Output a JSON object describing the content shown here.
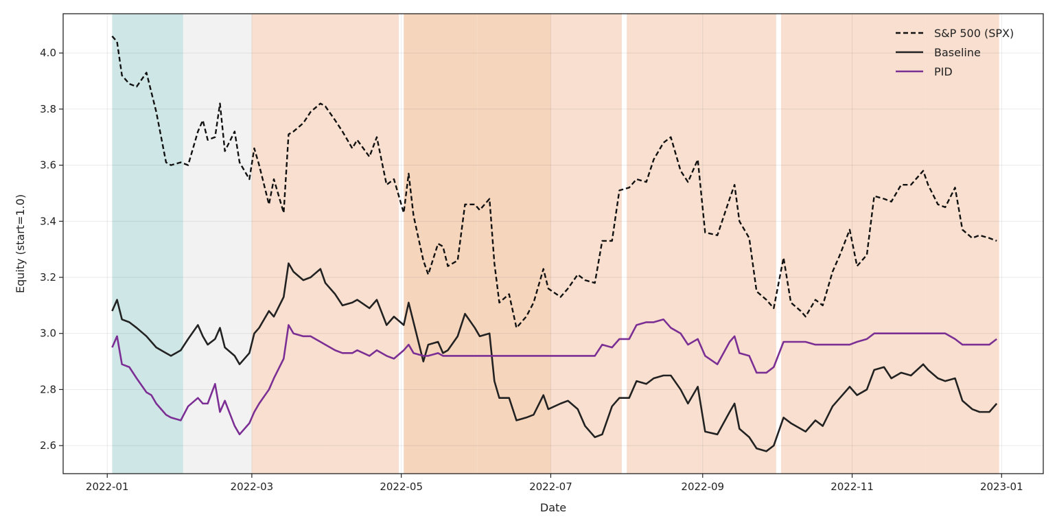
{
  "chart_data": {
    "type": "line",
    "title": "",
    "xlabel": "Date",
    "ylabel": "Equity (start=1.0)",
    "xlim": [
      "2021-12-14",
      "2023-01-18"
    ],
    "ylim": [
      2.5,
      4.14
    ],
    "x_ticks": [
      "2022-01-01",
      "2022-03-01",
      "2022-05-01",
      "2022-07-01",
      "2022-09-01",
      "2022-11-01",
      "2023-01-01"
    ],
    "x_tick_labels": [
      "2022-01",
      "2022-03",
      "2022-05",
      "2022-07",
      "2022-09",
      "2022-11",
      "2023-01"
    ],
    "y_ticks": [
      2.6,
      2.8,
      3.0,
      3.2,
      3.4,
      3.6,
      3.8,
      4.0
    ],
    "y_tick_labels": [
      "2.6",
      "2.8",
      "3.0",
      "3.2",
      "3.4",
      "3.6",
      "3.8",
      "4.0"
    ],
    "grid": true,
    "legend_position": "top-right",
    "regime_bands": [
      {
        "start": "2022-01-03",
        "end": "2022-01-31",
        "color": "#cfe6e6"
      },
      {
        "start": "2022-02-01",
        "end": "2022-02-28",
        "color": "#f2f2f2"
      },
      {
        "start": "2022-03-01",
        "end": "2022-03-31",
        "color": "#f8dfcf"
      },
      {
        "start": "2022-04-01",
        "end": "2022-04-29",
        "color": "#f8dfcf"
      },
      {
        "start": "2022-05-02",
        "end": "2022-05-31",
        "color": "#f6d5bd"
      },
      {
        "start": "2022-06-01",
        "end": "2022-06-30",
        "color": "#f6d5bd"
      },
      {
        "start": "2022-07-01",
        "end": "2022-07-29",
        "color": "#f8dfcf"
      },
      {
        "start": "2022-08-01",
        "end": "2022-08-31",
        "color": "#f8dfcf"
      },
      {
        "start": "2022-09-01",
        "end": "2022-09-30",
        "color": "#f8dfcf"
      },
      {
        "start": "2022-10-03",
        "end": "2022-10-31",
        "color": "#f8dfcf"
      },
      {
        "start": "2022-11-01",
        "end": "2022-11-30",
        "color": "#f8dfcf"
      },
      {
        "start": "2022-12-01",
        "end": "2022-12-30",
        "color": "#f8dfcf"
      }
    ],
    "series": [
      {
        "name": "S&P 500 (SPX)",
        "color": "#111111",
        "style": "dashed",
        "x": [
          "2022-01-03",
          "2022-01-05",
          "2022-01-07",
          "2022-01-10",
          "2022-01-13",
          "2022-01-17",
          "2022-01-19",
          "2022-01-21",
          "2022-01-25",
          "2022-01-27",
          "2022-01-31",
          "2022-02-03",
          "2022-02-07",
          "2022-02-09",
          "2022-02-11",
          "2022-02-14",
          "2022-02-16",
          "2022-02-18",
          "2022-02-22",
          "2022-02-24",
          "2022-02-28",
          "2022-03-02",
          "2022-03-04",
          "2022-03-08",
          "2022-03-10",
          "2022-03-14",
          "2022-03-16",
          "2022-03-18",
          "2022-03-22",
          "2022-03-25",
          "2022-03-29",
          "2022-03-31",
          "2022-04-04",
          "2022-04-07",
          "2022-04-11",
          "2022-04-13",
          "2022-04-18",
          "2022-04-21",
          "2022-04-25",
          "2022-04-28",
          "2022-05-02",
          "2022-05-04",
          "2022-05-06",
          "2022-05-10",
          "2022-05-12",
          "2022-05-16",
          "2022-05-18",
          "2022-05-20",
          "2022-05-24",
          "2022-05-27",
          "2022-05-31",
          "2022-06-02",
          "2022-06-06",
          "2022-06-08",
          "2022-06-10",
          "2022-06-14",
          "2022-06-17",
          "2022-06-21",
          "2022-06-24",
          "2022-06-28",
          "2022-06-30",
          "2022-07-05",
          "2022-07-08",
          "2022-07-12",
          "2022-07-15",
          "2022-07-19",
          "2022-07-22",
          "2022-07-26",
          "2022-07-29",
          "2022-08-02",
          "2022-08-05",
          "2022-08-09",
          "2022-08-12",
          "2022-08-16",
          "2022-08-19",
          "2022-08-23",
          "2022-08-26",
          "2022-08-30",
          "2022-09-02",
          "2022-09-07",
          "2022-09-12",
          "2022-09-14",
          "2022-09-16",
          "2022-09-20",
          "2022-09-23",
          "2022-09-27",
          "2022-09-30",
          "2022-10-04",
          "2022-10-07",
          "2022-10-11",
          "2022-10-13",
          "2022-10-17",
          "2022-10-20",
          "2022-10-24",
          "2022-10-27",
          "2022-10-31",
          "2022-11-03",
          "2022-11-07",
          "2022-11-10",
          "2022-11-14",
          "2022-11-17",
          "2022-11-21",
          "2022-11-25",
          "2022-11-30",
          "2022-12-02",
          "2022-12-06",
          "2022-12-09",
          "2022-12-13",
          "2022-12-16",
          "2022-12-20",
          "2022-12-23",
          "2022-12-27",
          "2022-12-30"
        ],
        "values": [
          4.06,
          4.04,
          3.92,
          3.89,
          3.88,
          3.93,
          3.86,
          3.79,
          3.61,
          3.6,
          3.61,
          3.6,
          3.72,
          3.76,
          3.69,
          3.7,
          3.82,
          3.65,
          3.72,
          3.61,
          3.55,
          3.66,
          3.6,
          3.46,
          3.55,
          3.43,
          3.71,
          3.72,
          3.75,
          3.79,
          3.82,
          3.81,
          3.76,
          3.72,
          3.66,
          3.69,
          3.63,
          3.7,
          3.53,
          3.55,
          3.43,
          3.57,
          3.42,
          3.26,
          3.21,
          3.32,
          3.31,
          3.24,
          3.26,
          3.46,
          3.46,
          3.44,
          3.48,
          3.25,
          3.11,
          3.14,
          3.02,
          3.06,
          3.11,
          3.23,
          3.16,
          3.13,
          3.16,
          3.21,
          3.19,
          3.18,
          3.33,
          3.33,
          3.51,
          3.52,
          3.55,
          3.54,
          3.62,
          3.68,
          3.7,
          3.58,
          3.54,
          3.62,
          3.36,
          3.35,
          3.48,
          3.53,
          3.4,
          3.34,
          3.15,
          3.12,
          3.09,
          3.27,
          3.11,
          3.08,
          3.06,
          3.12,
          3.1,
          3.22,
          3.28,
          3.37,
          3.24,
          3.28,
          3.49,
          3.48,
          3.47,
          3.53,
          3.53,
          3.58,
          3.53,
          3.46,
          3.45,
          3.52,
          3.37,
          3.34,
          3.35,
          3.34,
          3.33
        ]
      },
      {
        "name": "Baseline",
        "color": "#222222",
        "style": "solid",
        "x": [
          "2022-01-03",
          "2022-01-05",
          "2022-01-07",
          "2022-01-10",
          "2022-01-13",
          "2022-01-17",
          "2022-01-19",
          "2022-01-21",
          "2022-01-25",
          "2022-01-27",
          "2022-01-31",
          "2022-02-03",
          "2022-02-07",
          "2022-02-09",
          "2022-02-11",
          "2022-02-14",
          "2022-02-16",
          "2022-02-18",
          "2022-02-22",
          "2022-02-24",
          "2022-02-28",
          "2022-03-02",
          "2022-03-04",
          "2022-03-08",
          "2022-03-10",
          "2022-03-14",
          "2022-03-16",
          "2022-03-18",
          "2022-03-22",
          "2022-03-25",
          "2022-03-29",
          "2022-03-31",
          "2022-04-04",
          "2022-04-07",
          "2022-04-11",
          "2022-04-13",
          "2022-04-18",
          "2022-04-21",
          "2022-04-25",
          "2022-04-28",
          "2022-05-02",
          "2022-05-04",
          "2022-05-06",
          "2022-05-10",
          "2022-05-12",
          "2022-05-16",
          "2022-05-18",
          "2022-05-20",
          "2022-05-24",
          "2022-05-27",
          "2022-05-31",
          "2022-06-02",
          "2022-06-06",
          "2022-06-08",
          "2022-06-10",
          "2022-06-14",
          "2022-06-17",
          "2022-06-21",
          "2022-06-24",
          "2022-06-28",
          "2022-06-30",
          "2022-07-05",
          "2022-07-08",
          "2022-07-12",
          "2022-07-15",
          "2022-07-19",
          "2022-07-22",
          "2022-07-26",
          "2022-07-29",
          "2022-08-02",
          "2022-08-05",
          "2022-08-09",
          "2022-08-12",
          "2022-08-16",
          "2022-08-19",
          "2022-08-23",
          "2022-08-26",
          "2022-08-30",
          "2022-09-02",
          "2022-09-07",
          "2022-09-12",
          "2022-09-14",
          "2022-09-16",
          "2022-09-20",
          "2022-09-23",
          "2022-09-27",
          "2022-09-30",
          "2022-10-04",
          "2022-10-07",
          "2022-10-11",
          "2022-10-13",
          "2022-10-17",
          "2022-10-20",
          "2022-10-24",
          "2022-10-27",
          "2022-10-31",
          "2022-11-03",
          "2022-11-07",
          "2022-11-10",
          "2022-11-14",
          "2022-11-17",
          "2022-11-21",
          "2022-11-25",
          "2022-11-30",
          "2022-12-02",
          "2022-12-06",
          "2022-12-09",
          "2022-12-13",
          "2022-12-16",
          "2022-12-20",
          "2022-12-23",
          "2022-12-27",
          "2022-12-30"
        ],
        "values": [
          3.08,
          3.12,
          3.05,
          3.04,
          3.02,
          2.99,
          2.97,
          2.95,
          2.93,
          2.92,
          2.94,
          2.98,
          3.03,
          2.99,
          2.96,
          2.98,
          3.02,
          2.95,
          2.92,
          2.89,
          2.93,
          3.0,
          3.02,
          3.08,
          3.06,
          3.13,
          3.25,
          3.22,
          3.19,
          3.2,
          3.23,
          3.18,
          3.14,
          3.1,
          3.11,
          3.12,
          3.09,
          3.12,
          3.03,
          3.06,
          3.03,
          3.11,
          3.04,
          2.9,
          2.96,
          2.97,
          2.93,
          2.94,
          2.99,
          3.07,
          3.02,
          2.99,
          3.0,
          2.83,
          2.77,
          2.77,
          2.69,
          2.7,
          2.71,
          2.78,
          2.73,
          2.75,
          2.76,
          2.73,
          2.67,
          2.63,
          2.64,
          2.74,
          2.77,
          2.77,
          2.83,
          2.82,
          2.84,
          2.85,
          2.85,
          2.8,
          2.75,
          2.81,
          2.65,
          2.64,
          2.72,
          2.75,
          2.66,
          2.63,
          2.59,
          2.58,
          2.6,
          2.7,
          2.68,
          2.66,
          2.65,
          2.69,
          2.67,
          2.74,
          2.77,
          2.81,
          2.78,
          2.8,
          2.87,
          2.88,
          2.84,
          2.86,
          2.85,
          2.89,
          2.87,
          2.84,
          2.83,
          2.84,
          2.76,
          2.73,
          2.72,
          2.72,
          2.75
        ]
      },
      {
        "name": "PID",
        "color": "#7b2f94",
        "style": "solid",
        "x": [
          "2022-01-03",
          "2022-01-05",
          "2022-01-07",
          "2022-01-10",
          "2022-01-13",
          "2022-01-17",
          "2022-01-19",
          "2022-01-21",
          "2022-01-25",
          "2022-01-27",
          "2022-01-31",
          "2022-02-03",
          "2022-02-07",
          "2022-02-09",
          "2022-02-11",
          "2022-02-14",
          "2022-02-16",
          "2022-02-18",
          "2022-02-22",
          "2022-02-24",
          "2022-02-28",
          "2022-03-02",
          "2022-03-04",
          "2022-03-08",
          "2022-03-10",
          "2022-03-14",
          "2022-03-16",
          "2022-03-18",
          "2022-03-22",
          "2022-03-25",
          "2022-03-29",
          "2022-03-31",
          "2022-04-04",
          "2022-04-07",
          "2022-04-11",
          "2022-04-13",
          "2022-04-18",
          "2022-04-21",
          "2022-04-25",
          "2022-04-28",
          "2022-05-02",
          "2022-05-04",
          "2022-05-06",
          "2022-05-10",
          "2022-05-12",
          "2022-05-16",
          "2022-05-18",
          "2022-05-20",
          "2022-05-24",
          "2022-05-27",
          "2022-05-31",
          "2022-06-02",
          "2022-06-06",
          "2022-06-08",
          "2022-06-10",
          "2022-06-14",
          "2022-06-17",
          "2022-06-21",
          "2022-06-24",
          "2022-06-28",
          "2022-06-30",
          "2022-07-05",
          "2022-07-08",
          "2022-07-12",
          "2022-07-15",
          "2022-07-19",
          "2022-07-22",
          "2022-07-26",
          "2022-07-29",
          "2022-08-02",
          "2022-08-05",
          "2022-08-09",
          "2022-08-12",
          "2022-08-16",
          "2022-08-19",
          "2022-08-23",
          "2022-08-26",
          "2022-08-30",
          "2022-09-02",
          "2022-09-07",
          "2022-09-12",
          "2022-09-14",
          "2022-09-16",
          "2022-09-20",
          "2022-09-23",
          "2022-09-27",
          "2022-09-30",
          "2022-10-04",
          "2022-10-07",
          "2022-10-11",
          "2022-10-13",
          "2022-10-17",
          "2022-10-20",
          "2022-10-24",
          "2022-10-27",
          "2022-10-31",
          "2022-11-03",
          "2022-11-07",
          "2022-11-10",
          "2022-11-14",
          "2022-11-17",
          "2022-11-21",
          "2022-11-25",
          "2022-11-30",
          "2022-12-02",
          "2022-12-06",
          "2022-12-09",
          "2022-12-13",
          "2022-12-16",
          "2022-12-20",
          "2022-12-23",
          "2022-12-27",
          "2022-12-30"
        ],
        "values": [
          2.95,
          2.99,
          2.89,
          2.88,
          2.84,
          2.79,
          2.78,
          2.75,
          2.71,
          2.7,
          2.69,
          2.74,
          2.77,
          2.75,
          2.75,
          2.82,
          2.72,
          2.76,
          2.67,
          2.64,
          2.68,
          2.72,
          2.75,
          2.8,
          2.84,
          2.91,
          3.03,
          3.0,
          2.99,
          2.99,
          2.97,
          2.96,
          2.94,
          2.93,
          2.93,
          2.94,
          2.92,
          2.94,
          2.92,
          2.91,
          2.94,
          2.96,
          2.93,
          2.92,
          2.92,
          2.93,
          2.92,
          2.92,
          2.92,
          2.92,
          2.92,
          2.92,
          2.92,
          2.92,
          2.92,
          2.92,
          2.92,
          2.92,
          2.92,
          2.92,
          2.92,
          2.92,
          2.92,
          2.92,
          2.92,
          2.92,
          2.96,
          2.95,
          2.98,
          2.98,
          3.03,
          3.04,
          3.04,
          3.05,
          3.02,
          3.0,
          2.96,
          2.98,
          2.92,
          2.89,
          2.97,
          2.99,
          2.93,
          2.92,
          2.86,
          2.86,
          2.88,
          2.97,
          2.97,
          2.97,
          2.97,
          2.96,
          2.96,
          2.96,
          2.96,
          2.96,
          2.97,
          2.98,
          3.0,
          3.0,
          3.0,
          3.0,
          3.0,
          3.0,
          3.0,
          3.0,
          3.0,
          2.98,
          2.96,
          2.96,
          2.96,
          2.96,
          2.98
        ]
      }
    ]
  }
}
